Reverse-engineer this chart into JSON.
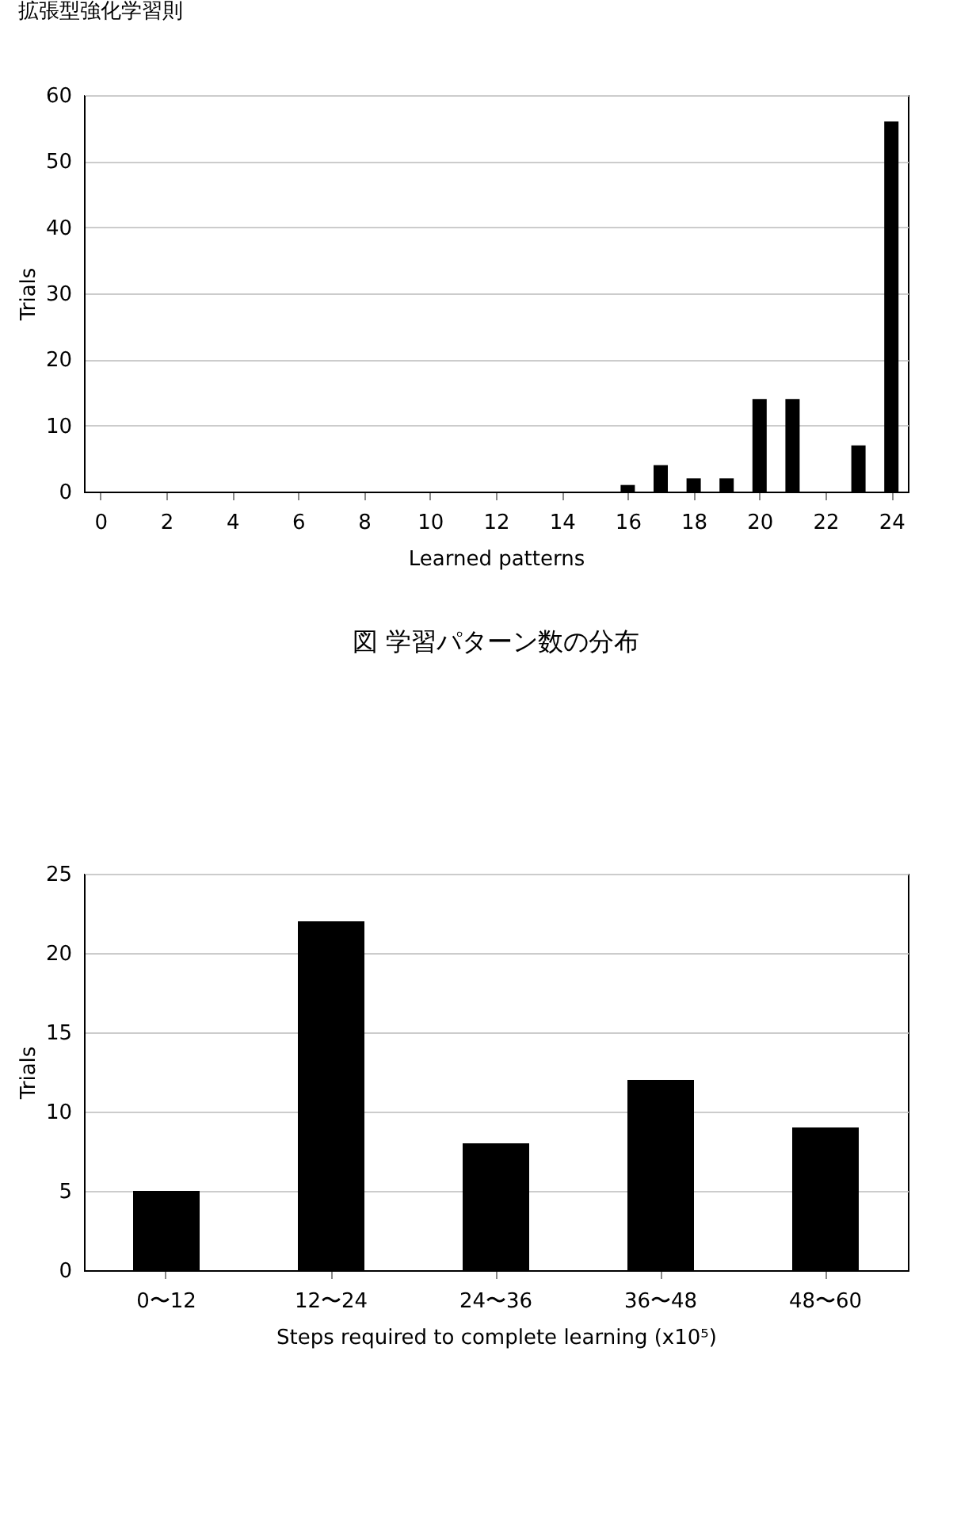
{
  "chart_data": [
    {
      "type": "bar",
      "title": "拡張型強化学習則",
      "x": [
        0,
        1,
        2,
        3,
        4,
        5,
        6,
        7,
        8,
        9,
        10,
        11,
        12,
        13,
        14,
        15,
        16,
        17,
        18,
        19,
        20,
        21,
        22,
        23,
        24
      ],
      "values": [
        0,
        0,
        0,
        0,
        0,
        0,
        0,
        0,
        0,
        0,
        0,
        0,
        0,
        0,
        0,
        0,
        1,
        4,
        2,
        2,
        14,
        14,
        0,
        7,
        56
      ],
      "color": "#000000",
      "xlabel": "Learned patterns",
      "ylabel": "Trials",
      "xlim": [
        -0.5,
        24.5
      ],
      "xticks": [
        0,
        2,
        4,
        6,
        8,
        10,
        12,
        14,
        16,
        18,
        20,
        22,
        24
      ],
      "ylim": [
        0,
        60
      ],
      "yticks": [
        0,
        10,
        20,
        30,
        40,
        50,
        60
      ],
      "grid": "y",
      "annotations": [
        "図 学習パターン数の分布"
      ]
    },
    {
      "type": "bar",
      "categories": [
        "0〜12",
        "12〜24",
        "24〜36",
        "36〜48",
        "48〜60"
      ],
      "values": [
        5,
        22,
        8,
        12,
        9
      ],
      "color": "#000000",
      "xlabel": "Steps required to complete learning (x10⁵)",
      "ylabel": "Trials",
      "ylim": [
        0,
        25
      ],
      "yticks": [
        0,
        5,
        10,
        15,
        20,
        25
      ],
      "grid": "y"
    }
  ]
}
